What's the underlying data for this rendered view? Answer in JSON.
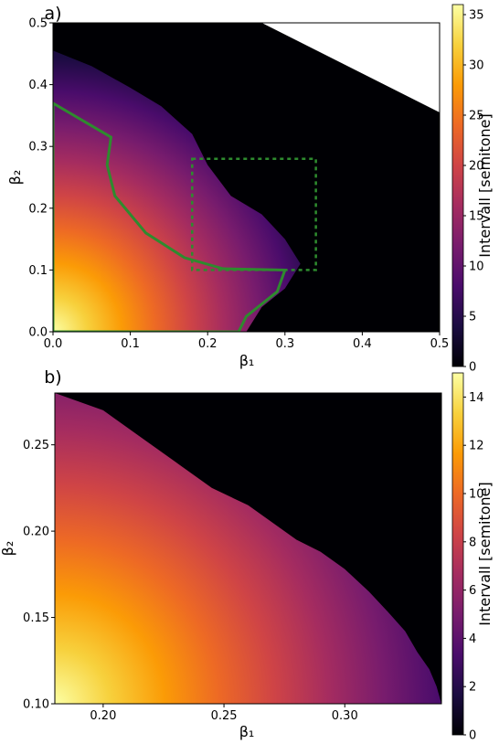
{
  "colors": {
    "background": "#000004",
    "contour": "#2e8b2e",
    "colormap": [
      "#000004",
      "#1b0c41",
      "#4a0c6b",
      "#781c6d",
      "#a52c60",
      "#cf4446",
      "#ed6925",
      "#fb9b06",
      "#f7d13d",
      "#fcffa4"
    ]
  },
  "chart_data": [
    {
      "panel_label": "a)",
      "type": "heatmap",
      "xlabel": "β₁",
      "ylabel": "β₂",
      "xlim": [
        0.0,
        0.5
      ],
      "ylim": [
        0.0,
        0.5
      ],
      "xticks": [
        "0.0",
        "0.1",
        "0.2",
        "0.3",
        "0.4",
        "0.5"
      ],
      "yticks": [
        "0.0",
        "0.1",
        "0.2",
        "0.3",
        "0.4",
        "0.5"
      ],
      "colorbar": {
        "label": "Intervall [semitone]",
        "min": 0,
        "max": 36,
        "ticks": [
          "0",
          "5",
          "10",
          "15",
          "20",
          "25",
          "30",
          "35"
        ]
      },
      "valid_region_boundary": [
        [
          0.0,
          0.455
        ],
        [
          0.05,
          0.43
        ],
        [
          0.1,
          0.395
        ],
        [
          0.14,
          0.365
        ],
        [
          0.18,
          0.32
        ],
        [
          0.2,
          0.27
        ],
        [
          0.23,
          0.22
        ],
        [
          0.27,
          0.19
        ],
        [
          0.3,
          0.15
        ],
        [
          0.32,
          0.11
        ],
        [
          0.3,
          0.07
        ],
        [
          0.27,
          0.04
        ],
        [
          0.25,
          0.0
        ]
      ],
      "white_region": [
        [
          0.27,
          0.5
        ],
        [
          0.5,
          0.5
        ],
        [
          0.5,
          0.355
        ]
      ],
      "solid_contour": [
        [
          0.0,
          0.37
        ],
        [
          0.075,
          0.315
        ],
        [
          0.07,
          0.27
        ],
        [
          0.08,
          0.22
        ],
        [
          0.12,
          0.16
        ],
        [
          0.17,
          0.12
        ],
        [
          0.22,
          0.102
        ],
        [
          0.3,
          0.1
        ],
        [
          0.29,
          0.065
        ],
        [
          0.25,
          0.025
        ],
        [
          0.24,
          0.0
        ],
        [
          0.0,
          0.0
        ]
      ],
      "zoom_box": {
        "x": [
          0.18,
          0.34
        ],
        "y": [
          0.1,
          0.28
        ]
      },
      "peak_value_at_origin": 36
    },
    {
      "panel_label": "b)",
      "type": "heatmap",
      "xlabel": "β₁",
      "ylabel": "β₂",
      "xlim": [
        0.18,
        0.34
      ],
      "ylim": [
        0.1,
        0.28
      ],
      "xticks": [
        "0.20",
        "0.25",
        "0.30"
      ],
      "yticks": [
        "0.10",
        "0.15",
        "0.20",
        "0.25"
      ],
      "colorbar": {
        "label": "Intervall [semitone]",
        "min": 0,
        "max": 15,
        "ticks": [
          "0",
          "2",
          "4",
          "6",
          "8",
          "10",
          "12",
          "14"
        ]
      },
      "valid_region_boundary": [
        [
          0.18,
          0.28
        ],
        [
          0.2,
          0.27
        ],
        [
          0.215,
          0.255
        ],
        [
          0.23,
          0.24
        ],
        [
          0.245,
          0.225
        ],
        [
          0.26,
          0.215
        ],
        [
          0.27,
          0.205
        ],
        [
          0.28,
          0.195
        ],
        [
          0.29,
          0.188
        ],
        [
          0.3,
          0.178
        ],
        [
          0.31,
          0.165
        ],
        [
          0.318,
          0.153
        ],
        [
          0.325,
          0.142
        ],
        [
          0.33,
          0.13
        ],
        [
          0.335,
          0.12
        ],
        [
          0.338,
          0.11
        ],
        [
          0.34,
          0.1
        ]
      ],
      "peak_value_at": [
        0.18,
        0.1
      ]
    }
  ]
}
